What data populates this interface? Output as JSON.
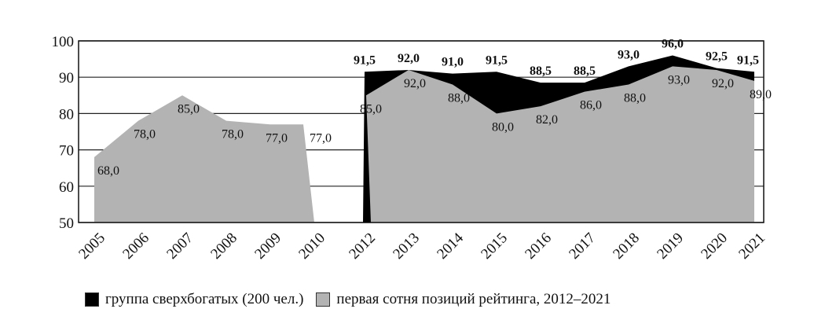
{
  "chart_data": {
    "type": "area",
    "ylim": [
      50,
      100
    ],
    "yticks": [
      "50",
      "60",
      "70",
      "80",
      "90",
      "100"
    ],
    "grid": true,
    "legend_position": "bottom",
    "categories": [
      "2005",
      "2006",
      "2007",
      "2008",
      "2009",
      "2010",
      "2012",
      "2013",
      "2014",
      "2015",
      "2016",
      "2017",
      "2018",
      "2019",
      "2020",
      "2021"
    ],
    "series": [
      {
        "name": "группа сверхбогатых (200 чел.)",
        "color": "#000000",
        "values": [
          null,
          null,
          null,
          null,
          null,
          null,
          91.5,
          92.0,
          91.0,
          91.5,
          88.5,
          88.5,
          93.0,
          96.0,
          92.5,
          91.5
        ],
        "labels": [
          "",
          "",
          "",
          "",
          "",
          "",
          "91,5",
          "92,0",
          "91,0",
          "91,5",
          "88,5",
          "88,5",
          "93,0",
          "96,0",
          "92,5",
          "91,5"
        ]
      },
      {
        "name": "первая сотня позиций рейтинга, 2012–2021",
        "color": "#b3b3b3",
        "values": [
          68.0,
          78.0,
          85.0,
          78.0,
          77.0,
          77.0,
          85.0,
          92.0,
          88.0,
          80.0,
          82.0,
          86.0,
          88.0,
          93.0,
          92.0,
          89.0
        ],
        "labels": [
          "68,0",
          "78,0",
          "85,0",
          "78,0",
          "77,0",
          "77,0",
          "85,0",
          "92,0",
          "88,0",
          "80,0",
          "82,0",
          "86,0",
          "88,0",
          "93,0",
          "92,0",
          "89,0"
        ]
      }
    ]
  }
}
